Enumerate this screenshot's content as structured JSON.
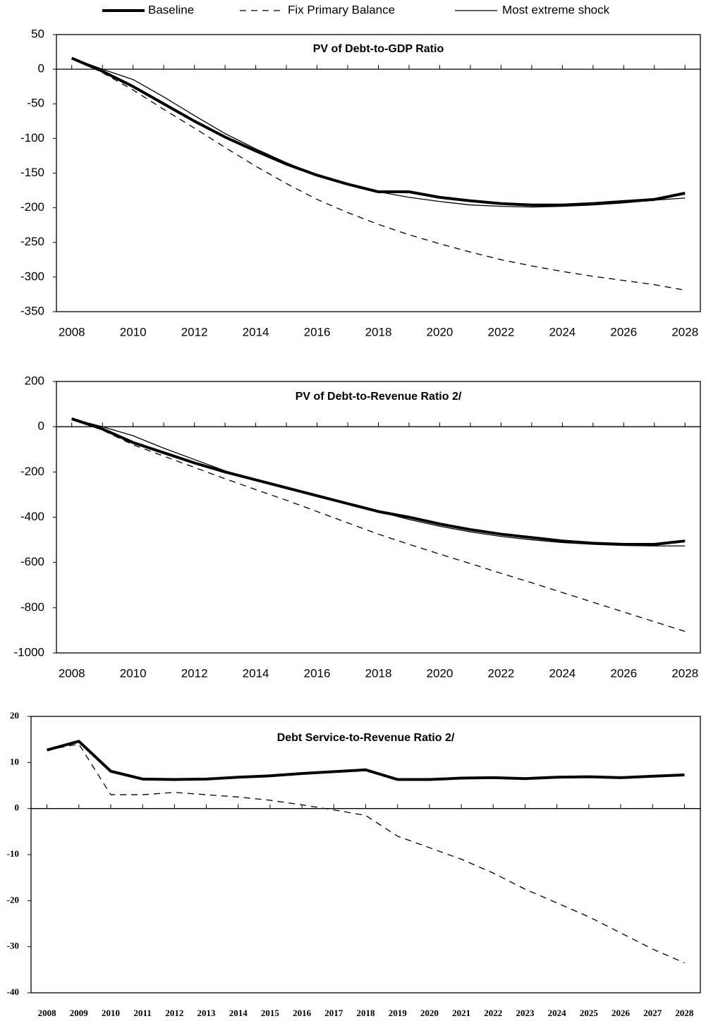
{
  "chart_data": [
    {
      "type": "line",
      "title": "PV of Debt-to-GDP Ratio",
      "categories": [
        "2008",
        null,
        "2010",
        null,
        "2012",
        null,
        "2014",
        null,
        "2016",
        null,
        "2018",
        null,
        "2020",
        null,
        "2022",
        null,
        "2024",
        null,
        "2026",
        null,
        "2028"
      ],
      "ylim": [
        -350,
        50
      ],
      "yticks": [
        50,
        0,
        -50,
        -100,
        -150,
        -200,
        -250,
        -300,
        -350
      ],
      "series": [
        {
          "name": "Baseline",
          "color": "#000000",
          "values": [
            16,
            -3,
            -25,
            -50,
            -75,
            -98,
            -118,
            -137,
            -153,
            -166,
            -177,
            -177,
            -185,
            -190,
            -194,
            -196,
            -196,
            -194,
            -191,
            -188,
            -179
          ]
        },
        {
          "name": "Fix Primary Balance",
          "color": "#000000",
          "values": [
            16,
            -5,
            -30,
            -58,
            -85,
            -113,
            -140,
            -165,
            -188,
            -207,
            -224,
            -239,
            -252,
            -264,
            -275,
            -284,
            -292,
            -299,
            -305,
            -311,
            -319
          ]
        },
        {
          "name": "Most extreme shock",
          "color": "#000000",
          "values": [
            16,
            0,
            -15,
            -40,
            -67,
            -93,
            -115,
            -135,
            -153,
            -167,
            -177,
            -185,
            -191,
            -196,
            -198,
            -199,
            -198,
            -196,
            -193,
            -189,
            -186
          ]
        }
      ]
    },
    {
      "type": "line",
      "title": "PV of Debt-to-Revenue Ratio 2/",
      "categories": [
        "2008",
        null,
        "2010",
        null,
        "2012",
        null,
        "2014",
        null,
        "2016",
        null,
        "2018",
        null,
        "2020",
        null,
        "2022",
        null,
        "2024",
        null,
        "2026",
        null,
        "2028"
      ],
      "ylim": [
        -1000,
        200
      ],
      "yticks": [
        200,
        0,
        -200,
        -400,
        -600,
        -800,
        -1000
      ],
      "series": [
        {
          "color": "#000000",
          "values": [
            35,
            -10,
            -70,
            -115,
            -160,
            -200,
            -235,
            -270,
            -305,
            -340,
            -375,
            -400,
            -430,
            -455,
            -475,
            -490,
            -505,
            -515,
            -520,
            -520,
            -505
          ]
        },
        {
          "color": "#000000",
          "values": [
            35,
            -15,
            -80,
            -130,
            -180,
            -230,
            -278,
            -325,
            -375,
            -425,
            -475,
            -520,
            -563,
            -605,
            -648,
            -690,
            -733,
            -776,
            -819,
            -862,
            -905
          ]
        },
        {
          "color": "#000000",
          "values": [
            35,
            0,
            -40,
            -95,
            -145,
            -195,
            -235,
            -270,
            -305,
            -340,
            -375,
            -410,
            -440,
            -465,
            -485,
            -500,
            -512,
            -520,
            -525,
            -527,
            -527
          ]
        }
      ]
    },
    {
      "type": "line",
      "title": "Debt Service-to-Revenue Ratio 2/",
      "categories": [
        "2008",
        "2009",
        "2010",
        "2011",
        "2012",
        "2013",
        "2014",
        "2015",
        "2016",
        "2017",
        "2018",
        "2019",
        "2020",
        "2021",
        "2022",
        "2023",
        "2024",
        "2025",
        "2026",
        "2027",
        "2028"
      ],
      "ylim": [
        -40,
        20
      ],
      "yticks": [
        20,
        10,
        0,
        -10,
        -20,
        -30,
        -40
      ],
      "series": [
        {
          "color": "#000000",
          "values": [
            12.7,
            14.6,
            8.1,
            6.4,
            6.3,
            6.4,
            6.8,
            7.1,
            7.6,
            8.0,
            8.4,
            6.3,
            6.3,
            6.6,
            6.7,
            6.5,
            6.8,
            6.9,
            6.7,
            7.0,
            7.3
          ]
        },
        {
          "color": "#000000",
          "values": [
            12.7,
            14.0,
            3.0,
            3.0,
            3.5,
            3.0,
            2.5,
            1.8,
            0.8,
            -0.3,
            -1.5,
            -6,
            -8.5,
            -11,
            -14,
            -17.5,
            -20.5,
            -23.5,
            -27,
            -30.5,
            -33.5
          ]
        }
      ]
    }
  ]
}
